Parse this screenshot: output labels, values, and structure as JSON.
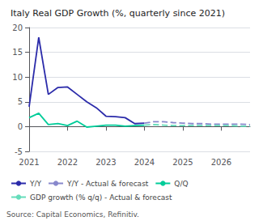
{
  "chart_data": {
    "type": "line",
    "title": "Italy Real GDP Growth (%, quarterly since 2021)",
    "annotations": [
      "Source: Capital Economics, Refinitiv."
    ],
    "xlim": [
      2021.0,
      2026.75
    ],
    "xticks": [
      2021,
      2022,
      2023,
      2024,
      2025,
      2026
    ],
    "ylim": [
      -5,
      20
    ],
    "yticks": [
      -5,
      0,
      5,
      10,
      15,
      20
    ],
    "grid": true,
    "legend": "bottom",
    "series": [
      {
        "name": "Y/Y",
        "color": "#2b2baa",
        "line_style": "solid",
        "x": [
          2021.0,
          2021.25,
          2021.5,
          2021.75,
          2022.0,
          2022.25,
          2022.5,
          2022.75,
          2023.0,
          2023.25,
          2023.5,
          2023.75,
          2024.0
        ],
        "values": [
          4.0,
          18.0,
          6.5,
          7.9,
          8.0,
          6.5,
          5.0,
          3.8,
          2.1,
          2.0,
          1.8,
          0.6,
          0.7
        ]
      },
      {
        "name": "Y/Y - Actual & forecast",
        "color": "#8888cc",
        "line_style": "dashed",
        "x": [
          2024.0,
          2024.25,
          2024.5,
          2024.75,
          2025.0,
          2025.25,
          2025.5,
          2025.75,
          2026.0,
          2026.25,
          2026.5,
          2026.75
        ],
        "values": [
          0.7,
          1.0,
          1.0,
          0.8,
          0.7,
          0.6,
          0.6,
          0.5,
          0.5,
          0.5,
          0.5,
          0.4
        ]
      },
      {
        "name": "Q/Q",
        "color": "#00cc99",
        "line_style": "solid",
        "x": [
          2021.0,
          2021.25,
          2021.5,
          2021.75,
          2022.0,
          2022.25,
          2022.5,
          2022.75,
          2023.0,
          2023.25,
          2023.5,
          2023.75,
          2024.0
        ],
        "values": [
          1.8,
          2.7,
          0.4,
          0.6,
          0.2,
          1.1,
          -0.1,
          0.1,
          0.3,
          0.3,
          0.1,
          0.2,
          0.3
        ]
      },
      {
        "name": "GDP growth (% q/q) - Actual & forecast",
        "color": "#66ddbb",
        "line_style": "dashed",
        "x": [
          2024.0,
          2024.25,
          2024.5,
          2024.75,
          2025.0,
          2025.25,
          2025.5,
          2025.75,
          2026.0,
          2026.25,
          2026.5,
          2026.75
        ],
        "values": [
          0.3,
          0.4,
          0.3,
          0.2,
          0.2,
          0.2,
          0.2,
          0.2,
          0.2,
          0.2,
          0.1,
          0.1
        ]
      }
    ]
  }
}
